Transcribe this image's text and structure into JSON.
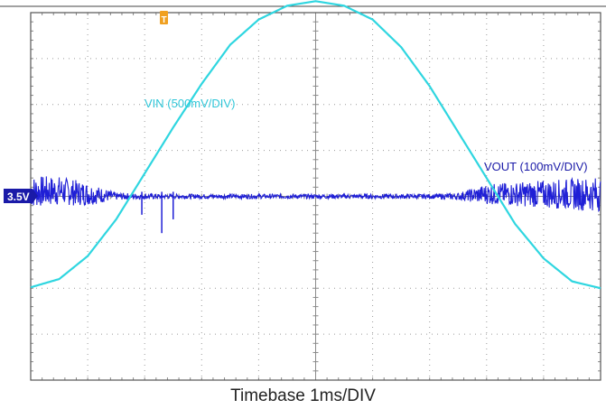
{
  "chart_data": {
    "type": "line",
    "xlabel": "Timebase 1ms/DIV",
    "x_divisions": 10,
    "y_divisions": 8,
    "grid": true,
    "trigger_marker": "T",
    "ground_marker": "3.5V",
    "colors": {
      "vin": "#2fd6e0",
      "vout": "#1f1fd6",
      "ground_marker_bg": "#1a1aa8",
      "trigger": "#f0a020",
      "grid": "#9a9a9a"
    },
    "series": [
      {
        "name": "VIN (500mV/DIV)",
        "color_key": "vin",
        "x_div": [
          0,
          0.5,
          1,
          1.5,
          2,
          2.5,
          3,
          3.5,
          4,
          4.5,
          5,
          5.5,
          6,
          6.5,
          7,
          7.5,
          8,
          8.5,
          9,
          9.5,
          10
        ],
        "y_div": [
          -1.98,
          -1.8,
          -1.3,
          -0.5,
          0.5,
          1.5,
          2.45,
          3.3,
          3.85,
          4.15,
          4.25,
          4.15,
          3.85,
          3.25,
          2.4,
          1.4,
          0.4,
          -0.6,
          -1.35,
          -1.85,
          -2.0
        ]
      },
      {
        "name": "VOUT (100mV/DIV)",
        "color_key": "vout",
        "x_div": [
          0,
          0.5,
          1,
          1.5,
          2,
          2.5,
          3,
          3.5,
          4,
          4.5,
          5,
          5.5,
          6,
          6.5,
          7,
          7.5,
          8,
          8.5,
          9,
          9.5,
          10
        ],
        "y_div": [
          0.1,
          0.12,
          0.05,
          0.0,
          0.0,
          0.0,
          0.0,
          0.0,
          0.0,
          0.0,
          0.0,
          0.0,
          0.0,
          0.0,
          0.0,
          0.0,
          0.05,
          0.05,
          0.05,
          0.05,
          0.05
        ],
        "ripple_div": [
          0.35,
          0.32,
          0.25,
          0.08,
          0.06,
          0.05,
          0.05,
          0.05,
          0.05,
          0.05,
          0.05,
          0.05,
          0.05,
          0.05,
          0.05,
          0.08,
          0.22,
          0.26,
          0.3,
          0.34,
          0.38
        ]
      }
    ]
  }
}
